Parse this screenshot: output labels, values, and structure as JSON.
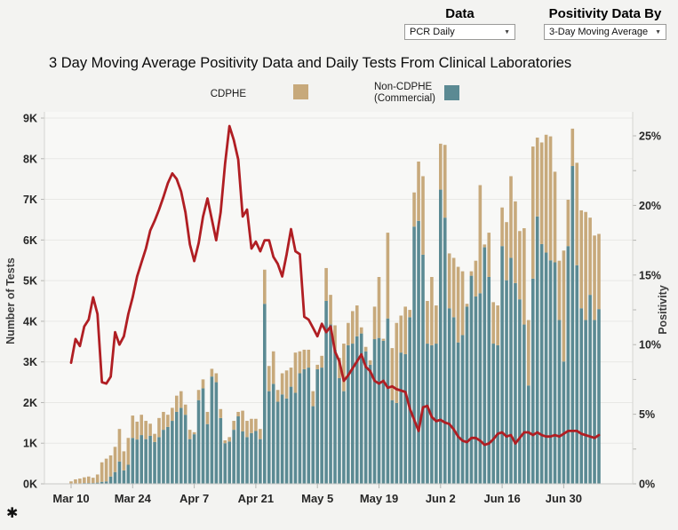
{
  "controls": {
    "data": {
      "label": "Data",
      "value": "PCR Daily"
    },
    "positivity": {
      "label": "Positivity Data By",
      "value": "3-Day Moving Average"
    }
  },
  "legend": {
    "cdphe_label": "CDPHE",
    "non_cdphe_label": "Non-CDPHE\n(Commercial)"
  },
  "footnote": "✱",
  "colors": {
    "cdphe": "#c7a97b",
    "non_cdphe": "#5b8a93",
    "positivity_line": "#b01e23",
    "page_background": "#f3f3f1",
    "plot_background": "#f8f8f6"
  },
  "chart_data": {
    "type": "combo_stacked_bar_line",
    "title": "3 Day Moving Average Positivity Data and Daily Tests From Clinical Laboratories",
    "grid": true,
    "legend_position": "top",
    "left_axis": {
      "label": "Number of Tests",
      "range": [
        0,
        9
      ],
      "unit": "K",
      "ticks": [
        "0K",
        "1K",
        "2K",
        "3K",
        "4K",
        "5K",
        "6K",
        "7K",
        "8K",
        "9K"
      ]
    },
    "right_axis": {
      "label": "Positivity",
      "range": [
        0,
        25
      ],
      "unit": "%",
      "ticks": [
        "0%",
        "5%",
        "10%",
        "15%",
        "20%",
        "25%"
      ],
      "minor_tick_step": 2.5
    },
    "x_ticks": [
      {
        "label": "Mar 10",
        "index": 0
      },
      {
        "label": "Mar 24",
        "index": 14
      },
      {
        "label": "Apr 7",
        "index": 28
      },
      {
        "label": "Apr 21",
        "index": 42
      },
      {
        "label": "May 5",
        "index": 56
      },
      {
        "label": "May 19",
        "index": 70
      },
      {
        "label": "Jun 2",
        "index": 84
      },
      {
        "label": "Jun 16",
        "index": 98
      },
      {
        "label": "Jun 30",
        "index": 112
      }
    ],
    "dates": [
      "Mar 10",
      "Mar 11",
      "Mar 12",
      "Mar 13",
      "Mar 14",
      "Mar 15",
      "Mar 16",
      "Mar 17",
      "Mar 18",
      "Mar 19",
      "Mar 20",
      "Mar 21",
      "Mar 22",
      "Mar 23",
      "Mar 24",
      "Mar 25",
      "Mar 26",
      "Mar 27",
      "Mar 28",
      "Mar 29",
      "Mar 30",
      "Mar 31",
      "Apr 1",
      "Apr 2",
      "Apr 3",
      "Apr 4",
      "Apr 5",
      "Apr 6",
      "Apr 7",
      "Apr 8",
      "Apr 9",
      "Apr 10",
      "Apr 11",
      "Apr 12",
      "Apr 13",
      "Apr 14",
      "Apr 15",
      "Apr 16",
      "Apr 17",
      "Apr 18",
      "Apr 19",
      "Apr 20",
      "Apr 21",
      "Apr 22",
      "Apr 23",
      "Apr 24",
      "Apr 25",
      "Apr 26",
      "Apr 27",
      "Apr 28",
      "Apr 29",
      "Apr 30",
      "May 1",
      "May 2",
      "May 3",
      "May 4",
      "May 5",
      "May 6",
      "May 7",
      "May 8",
      "May 9",
      "May 10",
      "May 11",
      "May 12",
      "May 13",
      "May 14",
      "May 15",
      "May 16",
      "May 17",
      "May 18",
      "May 19",
      "May 20",
      "May 21",
      "May 22",
      "May 23",
      "May 24",
      "May 25",
      "May 26",
      "May 27",
      "May 28",
      "May 29",
      "May 30",
      "May 31",
      "Jun 1",
      "Jun 2",
      "Jun 3",
      "Jun 4",
      "Jun 5",
      "Jun 6",
      "Jun 7",
      "Jun 8",
      "Jun 9",
      "Jun 10",
      "Jun 11",
      "Jun 12",
      "Jun 13",
      "Jun 14",
      "Jun 15",
      "Jun 16",
      "Jun 17",
      "Jun 18",
      "Jun 19",
      "Jun 20",
      "Jun 21",
      "Jun 22",
      "Jun 23",
      "Jun 24",
      "Jun 25",
      "Jun 26",
      "Jun 27",
      "Jun 28",
      "Jun 29",
      "Jun 30",
      "Jul 1",
      "Jul 2",
      "Jul 3",
      "Jul 4",
      "Jul 5",
      "Jul 6",
      "Jul 7",
      "Jul 8"
    ],
    "bar_series": [
      {
        "name": "Non-CDPHE (Commercial)",
        "color": "#5b8a93",
        "unit": "K tests",
        "values": [
          0,
          0,
          0,
          0.02,
          0.02,
          0.02,
          0.03,
          0.05,
          0.06,
          0.18,
          0.29,
          0.55,
          0.33,
          0.47,
          1.13,
          1.09,
          1.2,
          1.1,
          1.18,
          1.03,
          1.15,
          1.33,
          1.4,
          1.55,
          1.77,
          1.87,
          1.7,
          1.1,
          1.22,
          2.06,
          2.35,
          1.47,
          2.64,
          2.5,
          1.62,
          1.0,
          1.04,
          1.33,
          1.66,
          1.29,
          1.15,
          1.25,
          1.3,
          1.1,
          4.43,
          2.28,
          2.46,
          2.02,
          2.2,
          2.1,
          2.39,
          2.24,
          2.72,
          2.82,
          2.86,
          1.91,
          2.82,
          2.86,
          4.5,
          3.92,
          3.3,
          2.6,
          2.28,
          3.41,
          3.45,
          3.63,
          3.7,
          3.26,
          2.93,
          3.56,
          3.59,
          3.52,
          4.07,
          2.06,
          1.99,
          3.23,
          3.19,
          4.1,
          6.33,
          6.47,
          5.64,
          3.45,
          3.41,
          3.45,
          7.24,
          6.55,
          4.32,
          4.1,
          3.48,
          3.66,
          4.36,
          5.12,
          4.61,
          4.69,
          5.82,
          5.09,
          3.45,
          3.41,
          5.85,
          5.01,
          5.56,
          4.94,
          4.54,
          3.92,
          2.42,
          5.05,
          6.58,
          5.9,
          5.69,
          5.5,
          5.45,
          4.03,
          3.01,
          5.85,
          7.82,
          5.38,
          4.32,
          4.03,
          4.65,
          4.03,
          4.3
        ]
      },
      {
        "name": "CDPHE",
        "color": "#c7a97b",
        "unit": "K tests",
        "values": [
          0.06,
          0.11,
          0.13,
          0.14,
          0.16,
          0.13,
          0.2,
          0.48,
          0.56,
          0.52,
          0.62,
          0.8,
          0.47,
          0.66,
          0.55,
          0.44,
          0.5,
          0.45,
          0.3,
          0.2,
          0.47,
          0.44,
          0.3,
          0.32,
          0.4,
          0.41,
          0.25,
          0.23,
          0.05,
          0.25,
          0.22,
          0.3,
          0.19,
          0.22,
          0.22,
          0.07,
          0.11,
          0.22,
          0.11,
          0.51,
          0.4,
          0.35,
          0.3,
          0.25,
          0.84,
          0.62,
          0.8,
          0.29,
          0.52,
          0.69,
          0.47,
          0.99,
          0.54,
          0.48,
          0.44,
          0.37,
          0.11,
          0.29,
          0.81,
          0.73,
          0.6,
          0.5,
          1.17,
          0.55,
          0.8,
          0.76,
          0.15,
          0.11,
          0.11,
          0.8,
          1.5,
          0.05,
          2.11,
          1.28,
          1.97,
          0.91,
          1.17,
          0.18,
          0.84,
          1.46,
          1.93,
          1.05,
          1.68,
          0.94,
          1.13,
          1.79,
          1.35,
          1.46,
          1.86,
          1.57,
          0.07,
          0.11,
          0.88,
          2.66,
          0.07,
          1.09,
          1.02,
          0.98,
          0.95,
          1.43,
          2.01,
          2.01,
          1.68,
          2.37,
          1.61,
          3.25,
          1.94,
          2.5,
          2.9,
          3.05,
          2.23,
          1.46,
          2.73,
          1.14,
          0.92,
          2.52,
          2.41,
          2.66,
          1.9,
          2.08,
          1.85
        ]
      }
    ],
    "line_series": {
      "name": "3-Day Moving Average Positivity",
      "color": "#b01e23",
      "unit": "%",
      "values": [
        8.7,
        10.4,
        9.9,
        11.3,
        11.8,
        13.4,
        12.2,
        7.3,
        7.2,
        7.7,
        10.9,
        10.0,
        10.6,
        12.2,
        13.4,
        14.9,
        15.9,
        16.9,
        18.2,
        18.9,
        19.7,
        20.6,
        21.6,
        22.3,
        21.9,
        21.0,
        19.5,
        17.2,
        16.0,
        17.3,
        19.2,
        20.5,
        19.0,
        17.5,
        19.5,
        23.0,
        25.7,
        24.7,
        23.3,
        19.2,
        19.7,
        16.9,
        17.4,
        16.7,
        17.5,
        17.5,
        16.3,
        15.8,
        14.9,
        16.5,
        18.3,
        16.7,
        16.5,
        12.0,
        11.8,
        11.2,
        10.6,
        11.5,
        10.9,
        11.3,
        9.5,
        8.8,
        7.4,
        7.8,
        8.3,
        8.8,
        9.3,
        8.4,
        8.1,
        7.4,
        7.2,
        7.4,
        6.9,
        7.0,
        6.8,
        6.7,
        6.6,
        5.4,
        4.6,
        3.8,
        5.5,
        5.6,
        4.8,
        4.5,
        4.6,
        4.4,
        4.3,
        3.9,
        3.4,
        3.1,
        3.0,
        3.3,
        3.3,
        3.1,
        2.8,
        2.9,
        3.2,
        3.6,
        3.7,
        3.4,
        3.5,
        2.9,
        3.3,
        3.7,
        3.7,
        3.5,
        3.7,
        3.5,
        3.4,
        3.4,
        3.5,
        3.4,
        3.6,
        3.8,
        3.8,
        3.8,
        3.6,
        3.5,
        3.4,
        3.3,
        3.5
      ]
    }
  }
}
